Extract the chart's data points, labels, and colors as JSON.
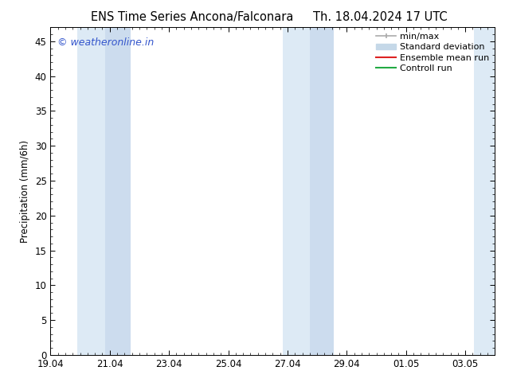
{
  "title_left": "ENS Time Series Ancona/Falconara",
  "title_right": "Th. 18.04.2024 17 UTC",
  "ylabel": "Precipitation (mm/6h)",
  "ylim": [
    0,
    47
  ],
  "yticks": [
    0,
    5,
    10,
    15,
    20,
    25,
    30,
    35,
    40,
    45
  ],
  "xlim": [
    0,
    15.0
  ],
  "xtick_positions": [
    0,
    2,
    4,
    6,
    8,
    10,
    12,
    14
  ],
  "xtick_labels": [
    "19.04",
    "21.04",
    "23.04",
    "25.04",
    "27.04",
    "29.04",
    "01.05",
    "03.05"
  ],
  "shaded_bands": [
    {
      "x_start": 0.9,
      "x_end": 1.85,
      "color": "#ddeaf5"
    },
    {
      "x_start": 1.85,
      "x_end": 2.7,
      "color": "#ccdcee"
    },
    {
      "x_start": 7.85,
      "x_end": 8.75,
      "color": "#ddeaf5"
    },
    {
      "x_start": 8.75,
      "x_end": 9.55,
      "color": "#ccdcee"
    },
    {
      "x_start": 14.3,
      "x_end": 15.0,
      "color": "#ddeaf5"
    }
  ],
  "background_color": "#ffffff",
  "watermark_text": "© weatheronline.in",
  "watermark_color": "#3355cc",
  "legend_minmax_color": "#aaaaaa",
  "legend_std_color": "#c5d8e8",
  "legend_ens_color": "#dd2222",
  "legend_ctrl_color": "#22aa44",
  "title_fontsize": 10.5,
  "tick_fontsize": 8.5,
  "ylabel_fontsize": 8.5,
  "legend_fontsize": 8,
  "watermark_fontsize": 9
}
